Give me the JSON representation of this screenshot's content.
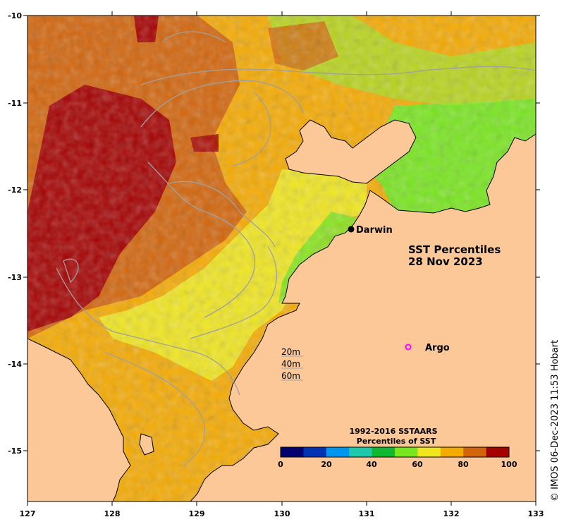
{
  "map": {
    "title_line1": "SST Percentiles",
    "title_line2": "28 Nov 2023",
    "credit": "© IMOS 06-Dec-2023 11:53 Hobart",
    "lon_ticks": [
      "127",
      "128",
      "129",
      "130",
      "131",
      "132",
      "133"
    ],
    "lat_ticks": [
      "-10",
      "-11",
      "-12",
      "-13",
      "-14",
      "-15"
    ],
    "lon_range": [
      127,
      133
    ],
    "lat_range": [
      -15.6,
      -10
    ],
    "places": [
      {
        "name": "Darwin",
        "lon": 130.84,
        "lat": -12.46,
        "marker": "filled-dot",
        "color": "#000000"
      },
      {
        "name": "Argo",
        "lon": 131.5,
        "lat": -13.81,
        "marker": "open-circle",
        "color": "#ff00ff"
      }
    ],
    "contour_labels": [
      "20m",
      "40m",
      "60m"
    ],
    "colorbar": {
      "title_line1": "1992-2016 SSTAARS",
      "title_line2": "Percentiles of SST",
      "ticks": [
        "0",
        "20",
        "40",
        "60",
        "80",
        "100"
      ],
      "colors": [
        "#00006e",
        "#0033b4",
        "#0096f0",
        "#1ec8aa",
        "#10b832",
        "#78e61e",
        "#f0e61e",
        "#f5aa00",
        "#d2640a",
        "#a50000"
      ]
    },
    "land_color": "#fcc898",
    "coast_color": "#000000",
    "contour_color": "#a0a0a0"
  }
}
